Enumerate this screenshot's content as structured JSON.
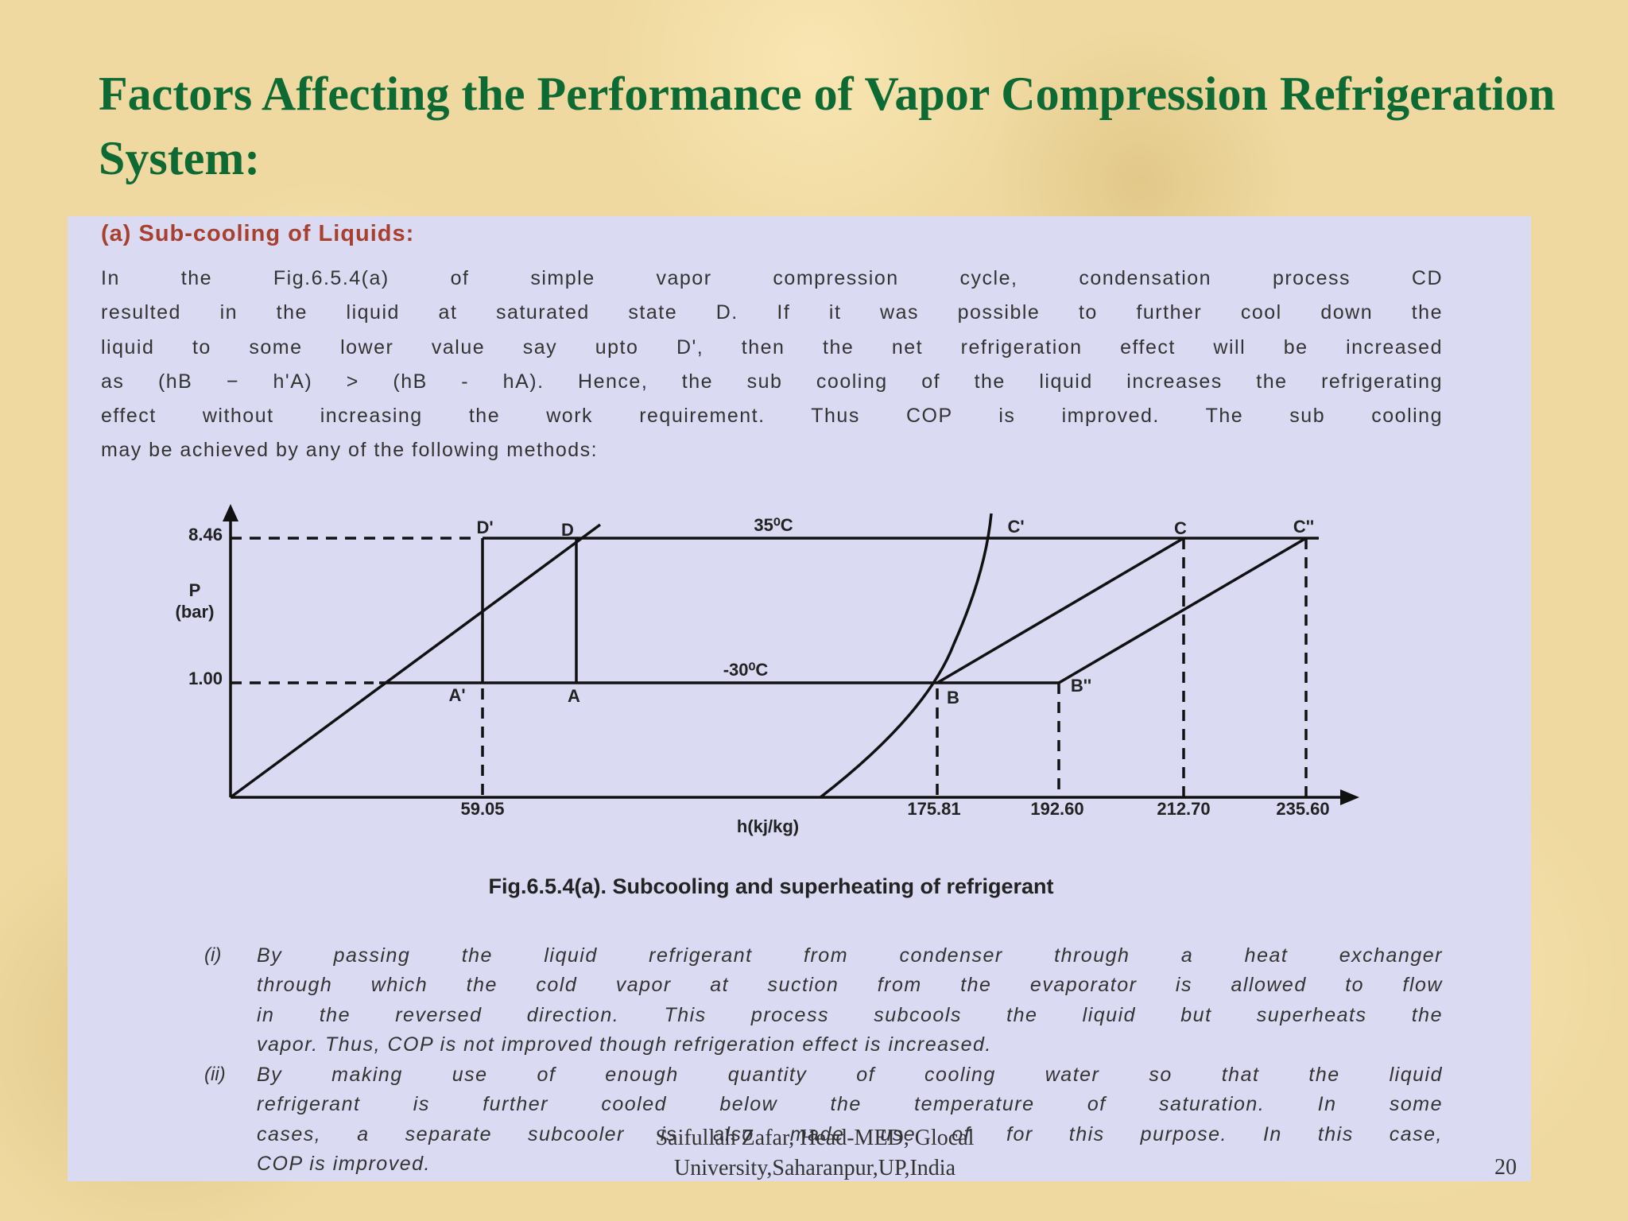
{
  "header": {
    "title": "Factors Affecting the Performance of Vapor Compression Refrigeration System:"
  },
  "section": {
    "heading": "(a) Sub-cooling of Liquids:",
    "paragraph": [
      "In the Fig.6.5.4(a) of simple vapor compression cycle, condensation process CD",
      "resulted in the liquid at saturated state D. If it was possible to further cool down the",
      "liquid to some lower value say upto D', then the net refrigeration effect will be increased",
      "as (hB − h'A) > (hB - hA). Hence, the sub cooling of the liquid increases the refrigerating",
      "effect without increasing the work requirement. Thus COP is improved. The sub cooling",
      "may be achieved by any of the following methods:"
    ]
  },
  "diagram": {
    "y_ticks": [
      "8.46",
      "1.00"
    ],
    "y_label": [
      "P",
      "(bar)"
    ],
    "x_ticks": [
      "59.05",
      "175.81",
      "192.60",
      "212.70",
      "235.60"
    ],
    "x_label": "h(kj/kg)",
    "points": [
      "D'",
      "D",
      "C'",
      "C",
      "C''",
      "A'",
      "A",
      "B",
      "B''"
    ],
    "temperatures": [
      "35⁰C",
      "-30⁰C"
    ],
    "caption": "Fig.6.5.4(a). Subcooling and superheating of refrigerant"
  },
  "methods": [
    {
      "number": "(i)",
      "lines": [
        "By passing the liquid refrigerant from condenser through a heat exchanger",
        "through which the cold vapor at suction from the evaporator is allowed to flow",
        "in the reversed direction. This process subcools the liquid but superheats the",
        "vapor. Thus, COP is not improved though refrigeration effect is increased."
      ]
    },
    {
      "number": "(ii)",
      "lines": [
        "By making use of enough quantity of cooling water so that the liquid",
        "refrigerant is further cooled below the temperature of saturation. In some",
        "cases, a separate subcooler is also made use of for this purpose. In this case,",
        "COP is improved."
      ]
    }
  ],
  "footer": {
    "author": [
      "Saifullah Zafar, Head-MED, Glocal",
      "University,Saharanpur,UP,India"
    ],
    "page": "20"
  }
}
